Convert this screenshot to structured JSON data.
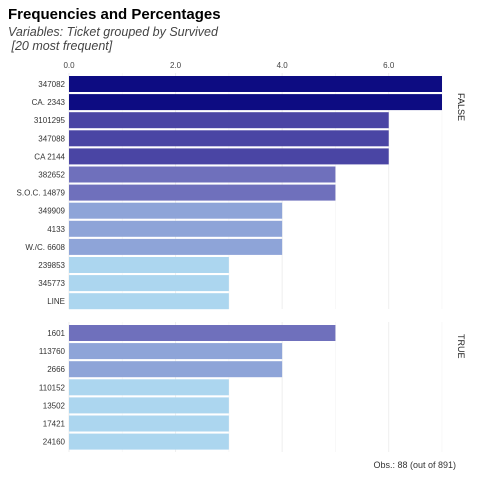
{
  "title": "Frequencies and Percentages",
  "subtitle": "Variables: Ticket grouped by Survived\n [20 most frequent]",
  "footer": "Obs.: 88 (out of 891)",
  "chart_data": {
    "type": "bar",
    "orientation": "horizontal",
    "xlim": [
      0,
      7
    ],
    "x_ticks": [
      "0.0",
      "2.0",
      "4.0",
      "6.0"
    ],
    "x_tick_values": [
      0,
      2,
      4,
      6
    ],
    "facets": [
      {
        "label": "FALSE",
        "categories": [
          "347082",
          "CA. 2343",
          "3101295",
          "347088",
          "CA 2144",
          "382652",
          "S.O.C. 14879",
          "349909",
          "4133",
          "W./C. 6608",
          "239853",
          "345773",
          "LINE"
        ],
        "values": [
          7,
          7,
          6,
          6,
          6,
          5,
          5,
          4,
          4,
          4,
          3,
          3,
          3
        ]
      },
      {
        "label": "TRUE",
        "categories": [
          "1601",
          "113760",
          "2666",
          "110152",
          "13502",
          "17421",
          "24160"
        ],
        "values": [
          5,
          4,
          4,
          3,
          3,
          3,
          3
        ]
      }
    ],
    "colors": {
      "7": "#0d0c82",
      "6": "#4a45a4",
      "5": "#6f70bc",
      "4": "#8ea4d8",
      "3": "#acd6ef"
    }
  }
}
